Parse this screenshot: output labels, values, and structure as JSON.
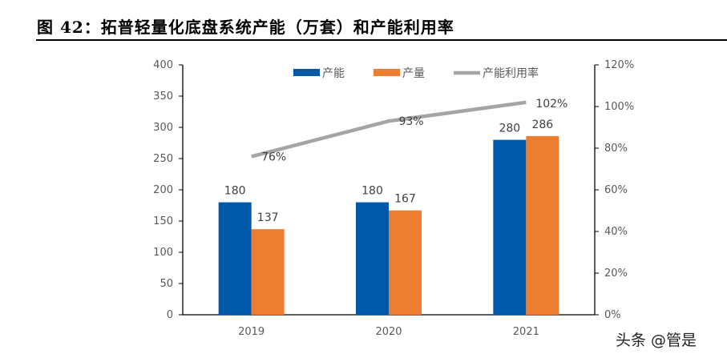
{
  "figure_title": "图 42：拓普轻量化底盘系统产能（万套）和产能利用率",
  "watermark": "头条 @管是",
  "chart_data": {
    "type": "bar+line",
    "categories": [
      "2019",
      "2020",
      "2021"
    ],
    "series": [
      {
        "name": "产能",
        "type": "bar",
        "axis": "left",
        "color": "#0059A8",
        "values": [
          180,
          180,
          280
        ]
      },
      {
        "name": "产量",
        "type": "bar",
        "axis": "left",
        "color": "#ED7D31",
        "values": [
          137,
          167,
          286
        ]
      },
      {
        "name": "产能利用率",
        "type": "line",
        "axis": "right",
        "color": "#A5A5A5",
        "values": [
          76,
          93,
          102
        ],
        "labels": [
          "76%",
          "93%",
          "102%"
        ]
      }
    ],
    "y_left": {
      "range": [
        0,
        400
      ],
      "ticks": [
        "0",
        "50",
        "100",
        "150",
        "200",
        "250",
        "300",
        "350",
        "400"
      ]
    },
    "y_right": {
      "range": [
        0,
        120
      ],
      "ticks": [
        "0%",
        "20%",
        "40%",
        "60%",
        "80%",
        "100%",
        "120%"
      ]
    },
    "legend_position": "top",
    "grid": false
  }
}
